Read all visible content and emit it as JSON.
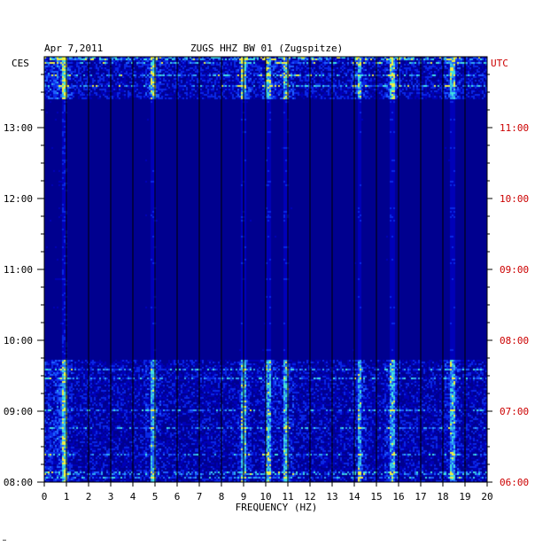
{
  "header": {
    "date": "Apr 7,2011",
    "station": "ZUGS HHZ BW 01 (Zugspitze)",
    "left_tz": "CES",
    "right_tz": "UTC"
  },
  "chart_data": {
    "type": "heatmap",
    "title": "ZUGS HHZ BW 01 (Zugspitze)",
    "date": "Apr 7,2011",
    "xlabel": "FREQUENCY (HZ)",
    "x_ticks": [
      "0",
      "1",
      "2",
      "3",
      "4",
      "5",
      "6",
      "7",
      "8",
      "9",
      "10",
      "11",
      "12",
      "13",
      "14",
      "15",
      "16",
      "17",
      "18",
      "19",
      "20"
    ],
    "xlim": [
      0,
      20
    ],
    "left_axis": {
      "label": "CES",
      "ticks": [
        "13:00",
        "12:00",
        "11:00",
        "10:00",
        "09:00",
        "08:00"
      ],
      "range": [
        "08:00",
        "14:00"
      ]
    },
    "right_axis": {
      "label": "UTC",
      "ticks": [
        "11:00",
        "10:00",
        "09:00",
        "08:00",
        "07:00",
        "06:00"
      ],
      "range": [
        "06:00",
        "12:00"
      ]
    },
    "colors": {
      "background": "#00008f",
      "low": "#0000b4",
      "mid": "#1e50ff",
      "high": "#40e0e0",
      "peak": "#ffff40",
      "utc_text": "#cc0000"
    },
    "notable_frequency_lines_hz": [
      0.9,
      4.9,
      9.0,
      10.1,
      10.9,
      14.2,
      15.7,
      18.4
    ],
    "notes": "spectrogram; elevated energy 08:00-09:45 and 13:25-14:00 CES"
  }
}
